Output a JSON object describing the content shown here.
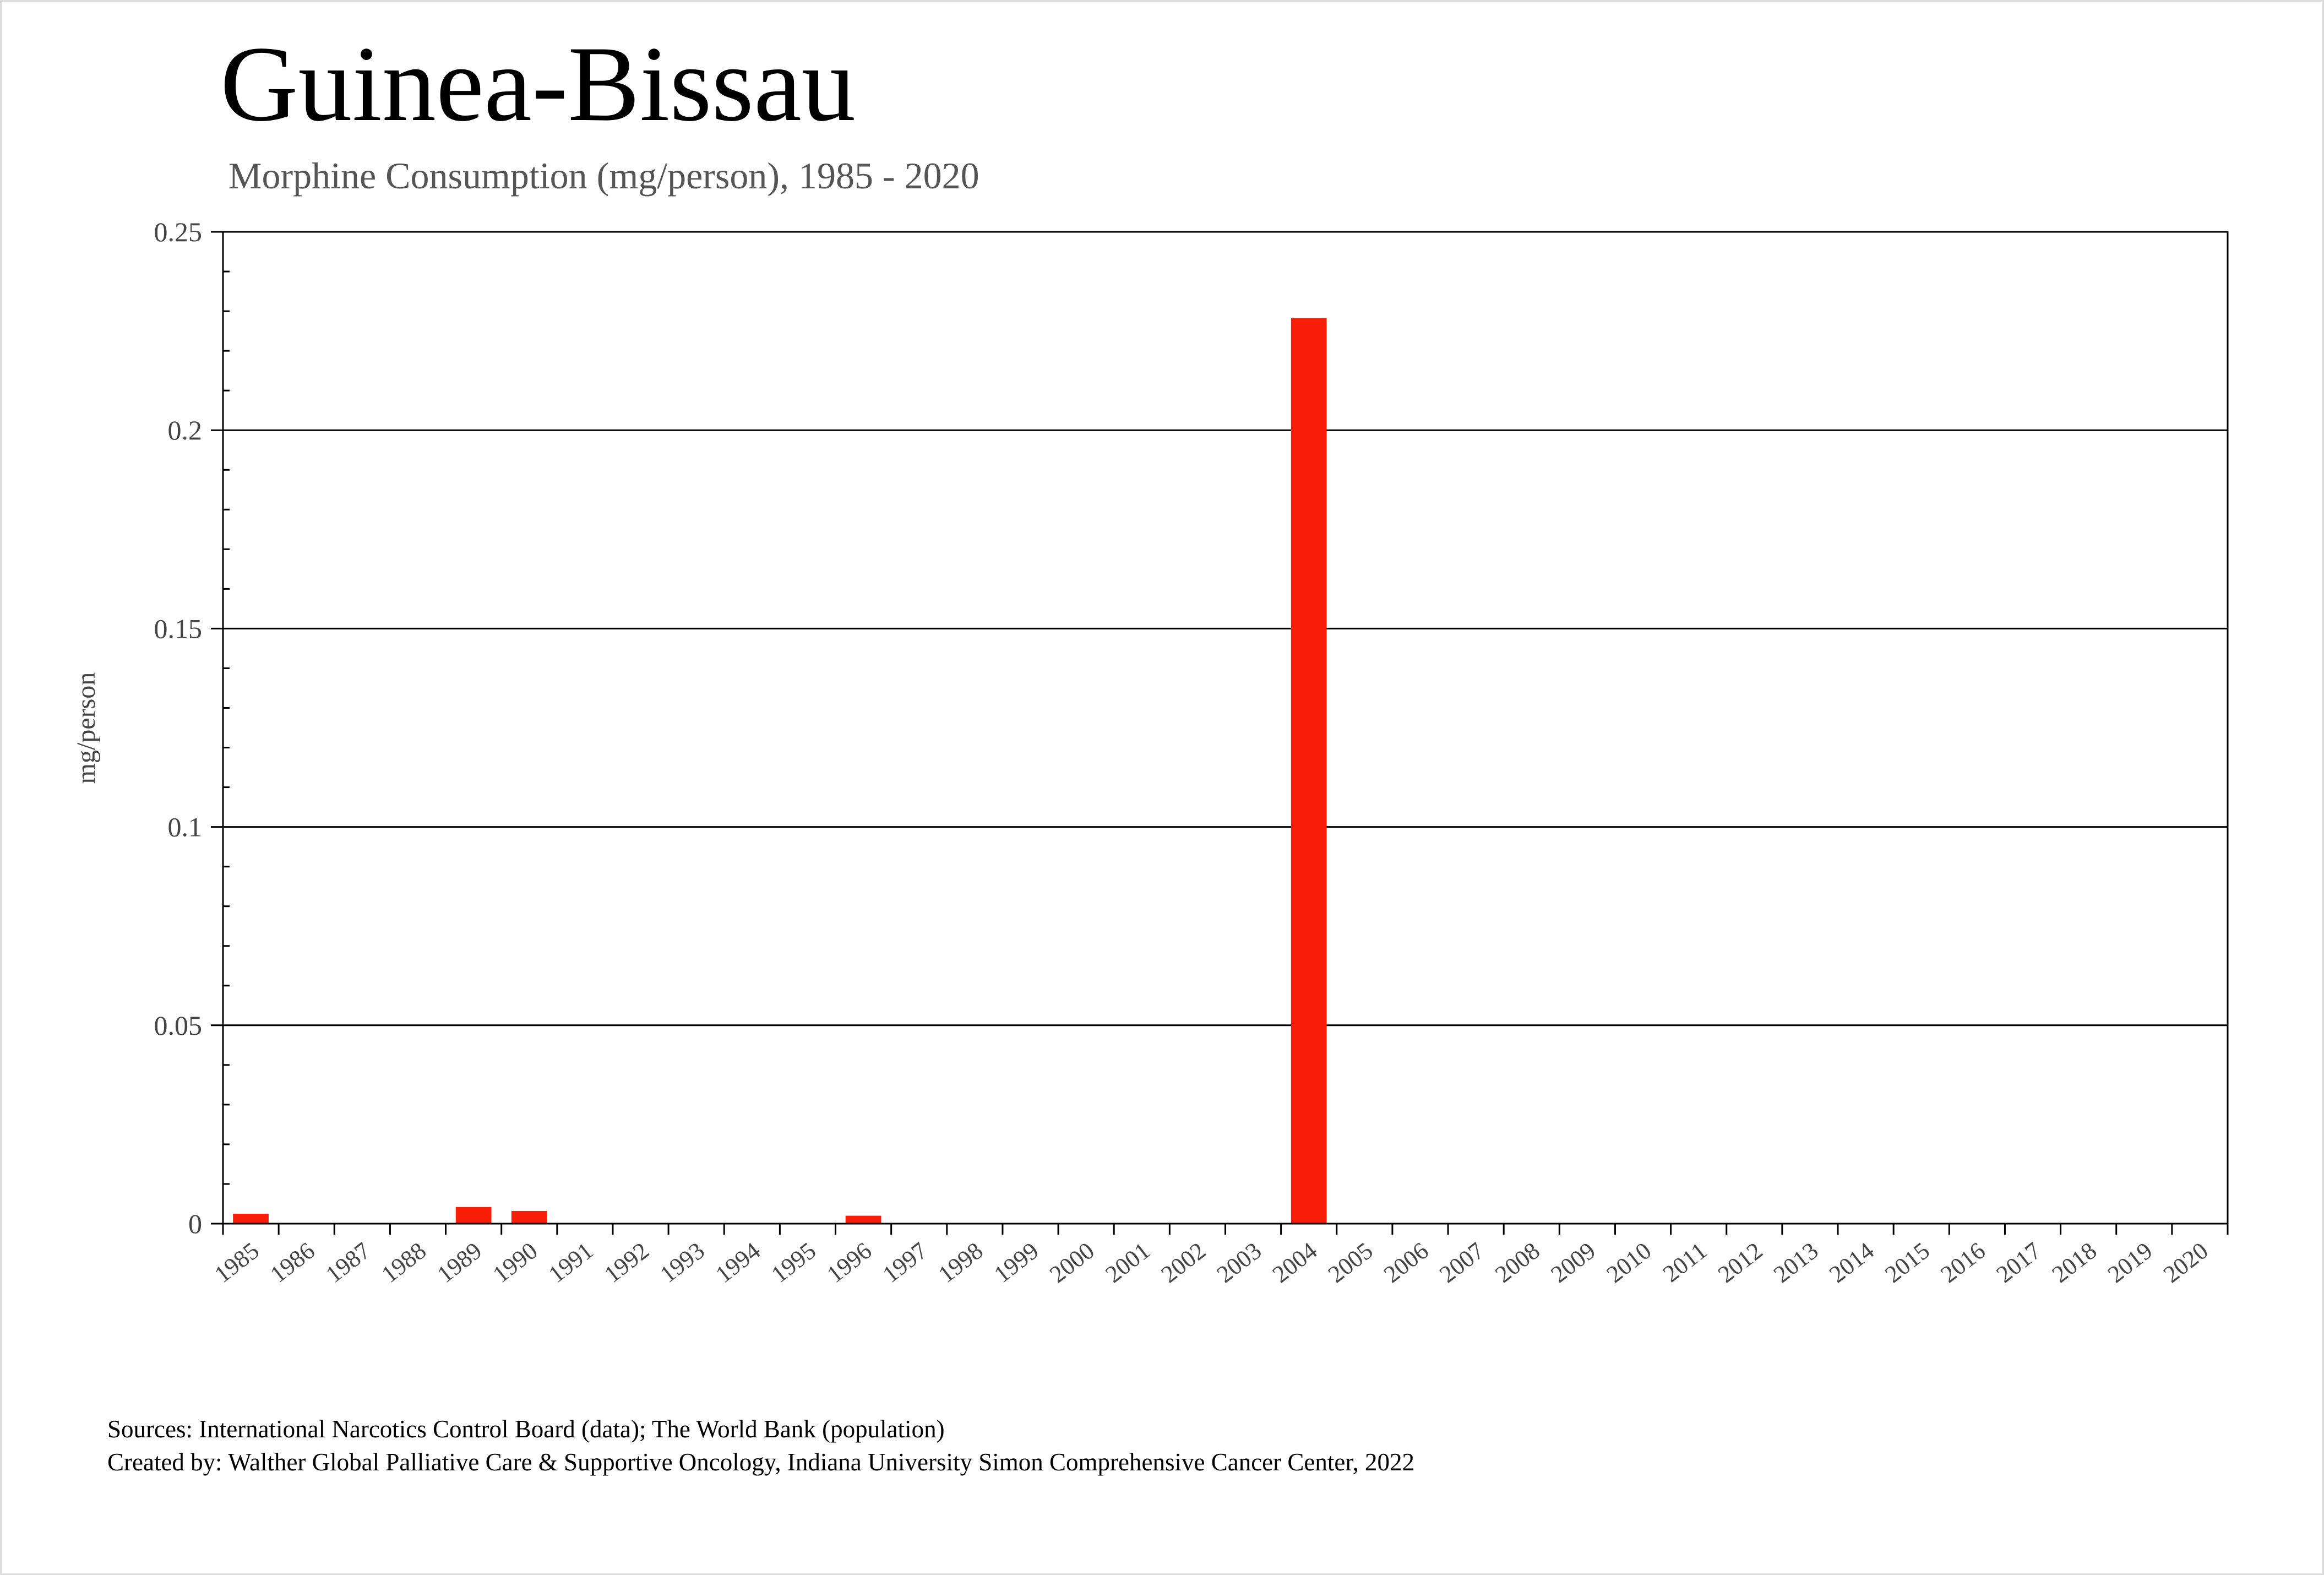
{
  "chart_data": {
    "type": "bar",
    "title": "Guinea-Bissau",
    "subtitle": "Morphine Consumption (mg/person), 1985 - 2020",
    "xlabel": "",
    "ylabel": "mg/person",
    "ylim": [
      0,
      0.25
    ],
    "yticks": [
      "0",
      "0.05",
      "0.1",
      "0.15",
      "0.2",
      "0.25"
    ],
    "grid": true,
    "categories": [
      "1985",
      "1986",
      "1987",
      "1988",
      "1989",
      "1990",
      "1991",
      "1992",
      "1993",
      "1994",
      "1995",
      "1996",
      "1997",
      "1998",
      "1999",
      "2000",
      "2001",
      "2002",
      "2003",
      "2004",
      "2005",
      "2006",
      "2007",
      "2008",
      "2009",
      "2010",
      "2011",
      "2012",
      "2013",
      "2014",
      "2015",
      "2016",
      "2017",
      "2018",
      "2019",
      "2020"
    ],
    "values": [
      0.0025,
      0,
      0,
      0,
      0.0042,
      0.0032,
      0,
      0,
      0,
      0,
      0,
      0.002,
      0,
      0,
      0,
      0,
      0,
      0,
      0,
      0.2283,
      0,
      0,
      0,
      0,
      0,
      0,
      0,
      0,
      0,
      0,
      0,
      0,
      0,
      0,
      0,
      0
    ],
    "bar_color": "#f91e07"
  },
  "footer": {
    "sources": "Sources: International Narcotics Control Board (data); The World Bank (population)",
    "created_by": "Created by: Walther  Global Palliative Care & Supportive Oncology, Indiana University Simon Comprehensive Cancer Center, 2022"
  }
}
